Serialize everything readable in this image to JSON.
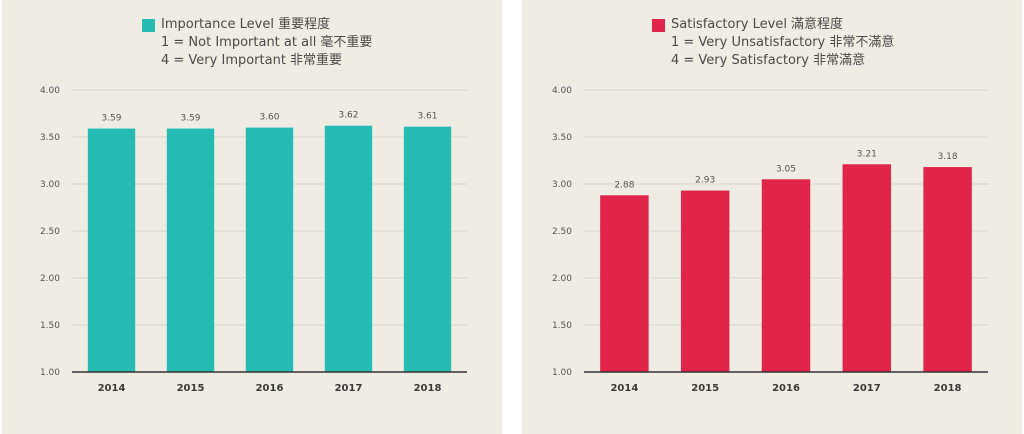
{
  "chart_data": [
    {
      "type": "bar",
      "legend": {
        "line1": "Importance Level 重要程度",
        "line2": "1 = Not Important at all 毫不重要",
        "line3": "4 = Very Important 非常重要"
      },
      "color": "#26bcb4",
      "categories": [
        "2014",
        "2015",
        "2016",
        "2017",
        "2018"
      ],
      "values": [
        3.59,
        3.59,
        3.6,
        3.62,
        3.61
      ],
      "value_labels": [
        "3.59",
        "3.59",
        "3.60",
        "3.62",
        "3.61"
      ],
      "ylim": [
        1.0,
        4.0
      ],
      "yticks": [
        1.0,
        1.5,
        2.0,
        2.5,
        3.0,
        3.5,
        4.0
      ],
      "ytick_labels": [
        "1.00",
        "1.50",
        "2.00",
        "2.50",
        "3.00",
        "3.50",
        "4.00"
      ],
      "grid": true,
      "legend_position": "top-center"
    },
    {
      "type": "bar",
      "legend": {
        "line1": "Satisfactory Level 滿意程度",
        "line2": "1 = Very Unsatisfactory 非常不滿意",
        "line3": "4 = Very Satisfactory 非常滿意"
      },
      "color": "#e0244a",
      "categories": [
        "2014",
        "2015",
        "2016",
        "2017",
        "2018"
      ],
      "values": [
        2.88,
        2.93,
        3.05,
        3.21,
        3.18
      ],
      "value_labels": [
        "2.88",
        "2.93",
        "3.05",
        "3.21",
        "3.18"
      ],
      "ylim": [
        1.0,
        4.0
      ],
      "yticks": [
        1.0,
        1.5,
        2.0,
        2.5,
        3.0,
        3.5,
        4.0
      ],
      "ytick_labels": [
        "1.00",
        "1.50",
        "2.00",
        "2.50",
        "3.00",
        "3.50",
        "4.00"
      ],
      "grid": true,
      "legend_position": "top-center"
    }
  ]
}
